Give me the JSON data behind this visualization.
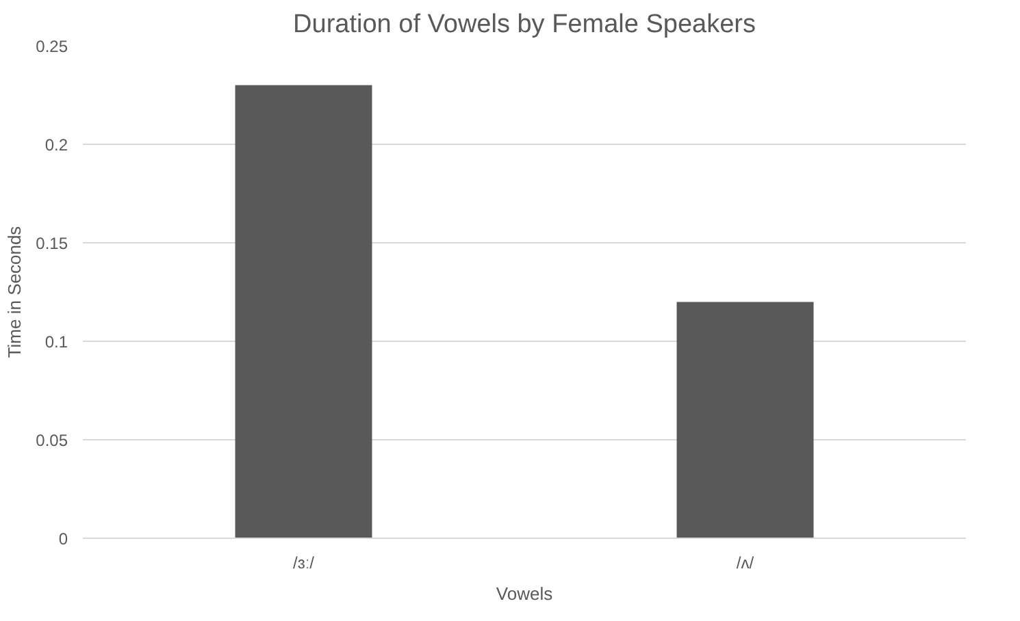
{
  "chart_data": {
    "type": "bar",
    "title": "Duration of Vowels by Female Speakers",
    "xlabel": "Vowels",
    "ylabel": "Time in Seconds",
    "categories": [
      "/ɜː/",
      "/ʌ/"
    ],
    "series": [
      {
        "color": "#595959",
        "values": [
          0.23,
          0.12
        ]
      }
    ],
    "ylim": [
      0,
      0.25
    ],
    "yticks": [
      0,
      0.05,
      0.1,
      0.15,
      0.2,
      0.25
    ],
    "grid": "y"
  }
}
